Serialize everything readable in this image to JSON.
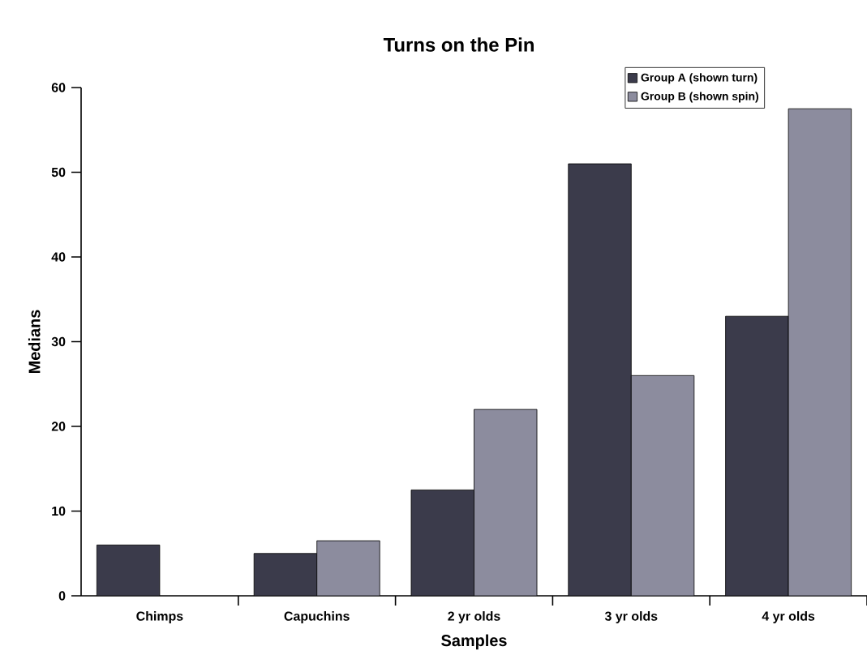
{
  "chart_data": {
    "type": "bar",
    "title": "Turns on the Pin",
    "xlabel": "Samples",
    "ylabel": "Medians",
    "categories": [
      "Chimps",
      "Capuchins",
      "2 yr olds",
      "3 yr olds",
      "4 yr olds"
    ],
    "series": [
      {
        "name": "Group A (shown turn)",
        "color": "#3b3b4b",
        "values": [
          6,
          5,
          12.5,
          51,
          33
        ]
      },
      {
        "name": "Group B (shown spin)",
        "color": "#8c8c9e",
        "values": [
          null,
          6.5,
          22,
          26,
          57.5
        ]
      }
    ],
    "ylim": [
      0,
      60
    ],
    "yticks": [
      0,
      10,
      20,
      30,
      40,
      50,
      60
    ],
    "grid": false,
    "legend": "top right"
  }
}
